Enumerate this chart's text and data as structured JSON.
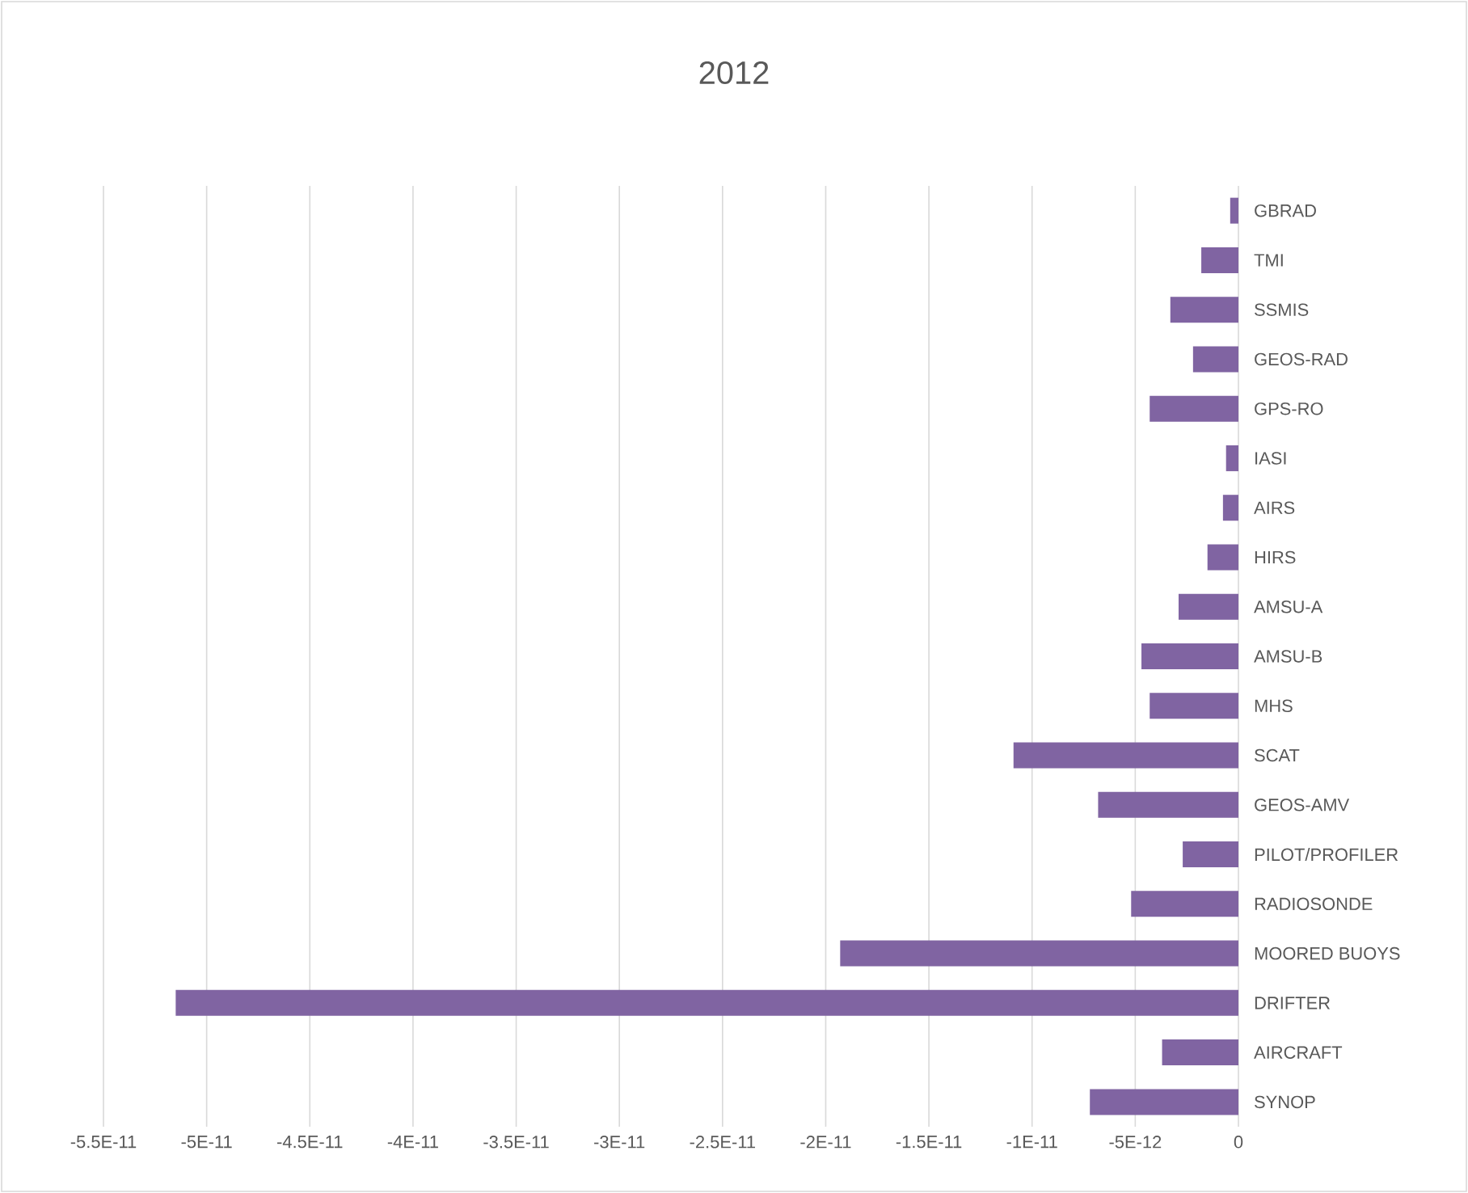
{
  "chart_data": {
    "type": "bar",
    "orientation": "horizontal",
    "title": "2012",
    "categories": [
      "GBRAD",
      "TMI",
      "SSMIS",
      "GEOS-RAD",
      "GPS-RO",
      "IASI",
      "AIRS",
      "HIRS",
      "AMSU-A",
      "AMSU-B",
      "MHS",
      "SCAT",
      "GEOS-AMV",
      "PILOT/PROFILER",
      "RADIOSONDE",
      "MOORED BUOYS",
      "DRIFTER",
      "AIRCRAFT",
      "SYNOP"
    ],
    "values": [
      -4e-13,
      -1.8e-12,
      -3.3e-12,
      -2.2e-12,
      -4.3e-12,
      -6e-13,
      -7.5e-13,
      -1.5e-12,
      -2.9e-12,
      -4.7e-12,
      -4.3e-12,
      -1.09e-11,
      -6.8e-12,
      -2.7e-12,
      -5.2e-12,
      -1.93e-11,
      -5.15e-11,
      -3.7e-12,
      -7.2e-12
    ],
    "color": "#8064a2",
    "xlim": [
      -5.5e-11,
      0
    ],
    "xticks": [
      {
        "value": -5.5e-11,
        "label": "-5.5E-11"
      },
      {
        "value": -5e-11,
        "label": "-5E-11"
      },
      {
        "value": -4.5e-11,
        "label": "-4.5E-11"
      },
      {
        "value": -4e-11,
        "label": "-4E-11"
      },
      {
        "value": -3.5e-11,
        "label": "-3.5E-11"
      },
      {
        "value": -3e-11,
        "label": "-3E-11"
      },
      {
        "value": -2.5e-11,
        "label": "-2.5E-11"
      },
      {
        "value": -2e-11,
        "label": "-2E-11"
      },
      {
        "value": -1.5e-11,
        "label": "-1.5E-11"
      },
      {
        "value": -1e-11,
        "label": "-1E-11"
      },
      {
        "value": -5e-12,
        "label": "-5E-12"
      },
      0
    ],
    "grid": "x"
  }
}
